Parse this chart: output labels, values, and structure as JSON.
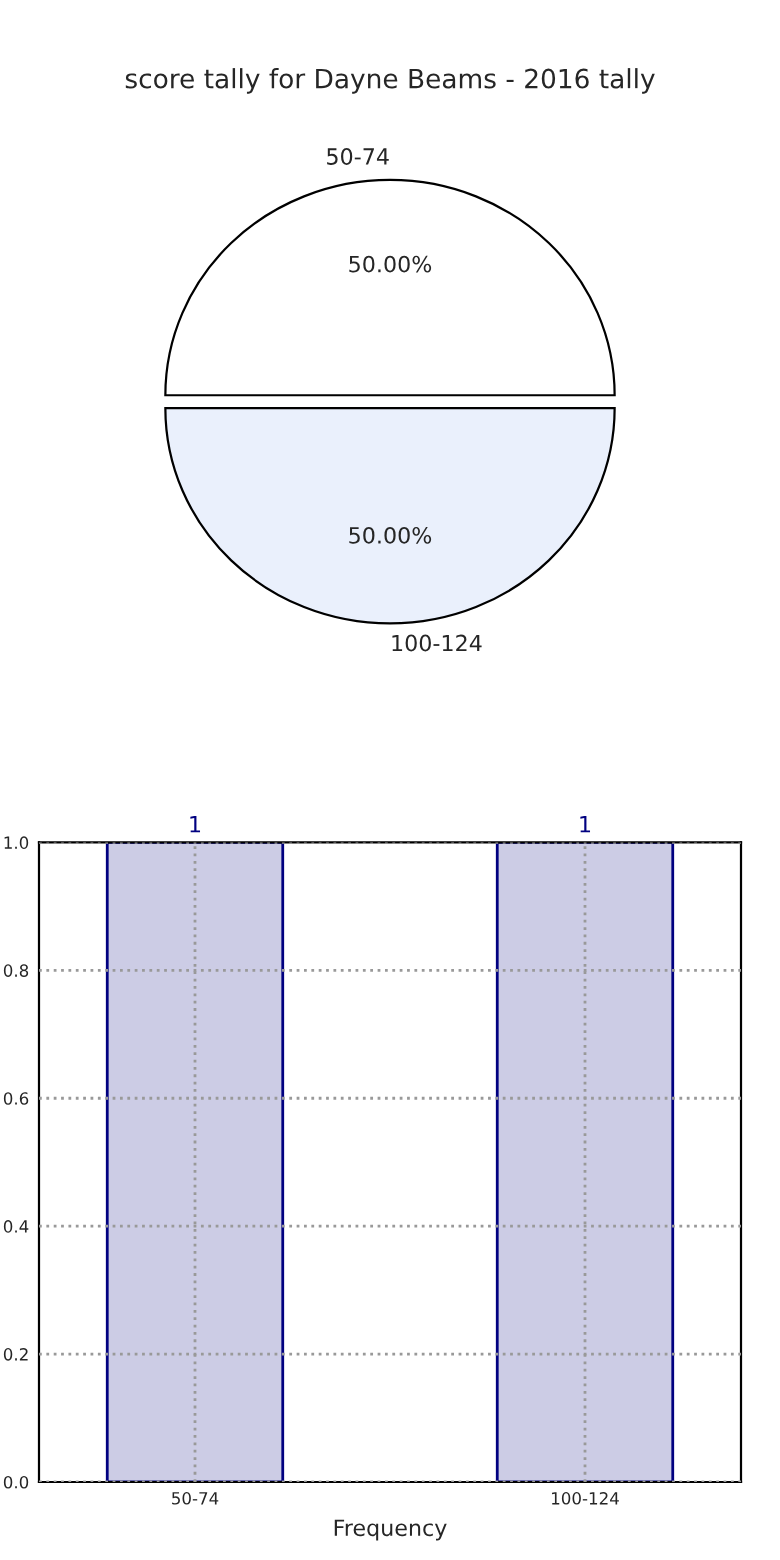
{
  "chart_data": [
    {
      "type": "pie",
      "title": "score tally for Dayne Beams - 2016 tally",
      "categories": [
        "50-74",
        "100-124"
      ],
      "values": [
        50,
        50
      ],
      "colors": [
        "#ffffff",
        "#eaf0fc"
      ],
      "value_labels": [
        "50.00%",
        "50.00%"
      ]
    },
    {
      "type": "bar",
      "categories": [
        "50-74",
        "100-124"
      ],
      "values": [
        1,
        1
      ],
      "color": "#ccccE5",
      "xlabel": "Frequency",
      "ylim": [
        0,
        1
      ],
      "yticks": [
        {
          "value": 0,
          "label": "0.0"
        },
        {
          "value": 0.2,
          "label": "0.2"
        },
        {
          "value": 0.4,
          "label": "0.4"
        },
        {
          "value": 0.6,
          "label": "0.6"
        },
        {
          "value": 0.8,
          "label": "0.8"
        },
        {
          "value": 1,
          "label": "1.0"
        }
      ],
      "grid": true,
      "data_labels": true
    }
  ]
}
